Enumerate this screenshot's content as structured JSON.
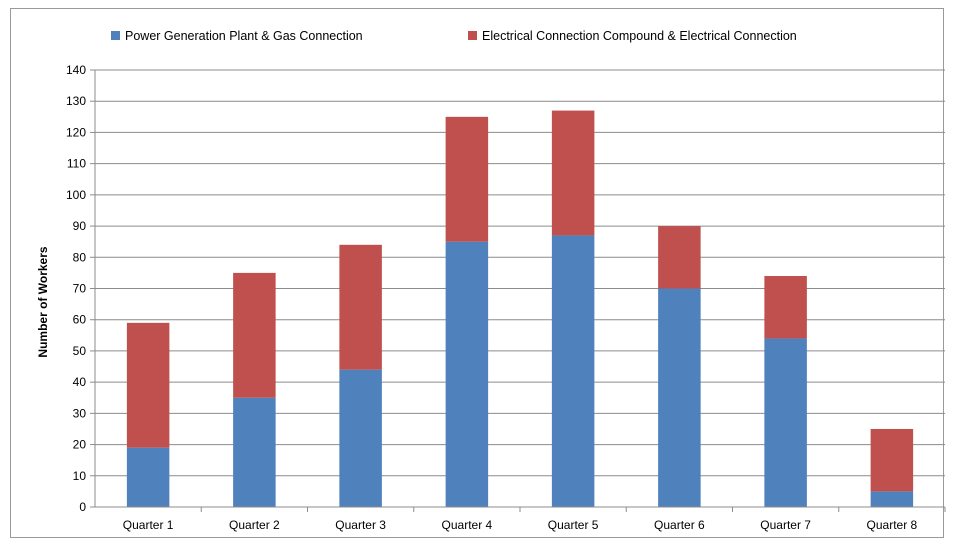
{
  "chart_data": {
    "type": "bar",
    "stacked": true,
    "title": "",
    "xlabel": "",
    "ylabel": "Number of Workers",
    "ylim": [
      0,
      140
    ],
    "ytick_step": 10,
    "grid": true,
    "legend_position": "top",
    "categories": [
      "Quarter 1",
      "Quarter 2",
      "Quarter 3",
      "Quarter 4",
      "Quarter 5",
      "Quarter 6",
      "Quarter 7",
      "Quarter 8"
    ],
    "series": [
      {
        "name": "Power Generation Plant & Gas Connection",
        "color": "#4f81bd",
        "values": [
          19,
          35,
          44,
          85,
          87,
          70,
          54,
          5
        ]
      },
      {
        "name": "Electrical Connection Compound & Electrical Connection",
        "color": "#c0504d",
        "values": [
          40,
          40,
          40,
          40,
          40,
          20,
          20,
          20
        ]
      }
    ]
  }
}
